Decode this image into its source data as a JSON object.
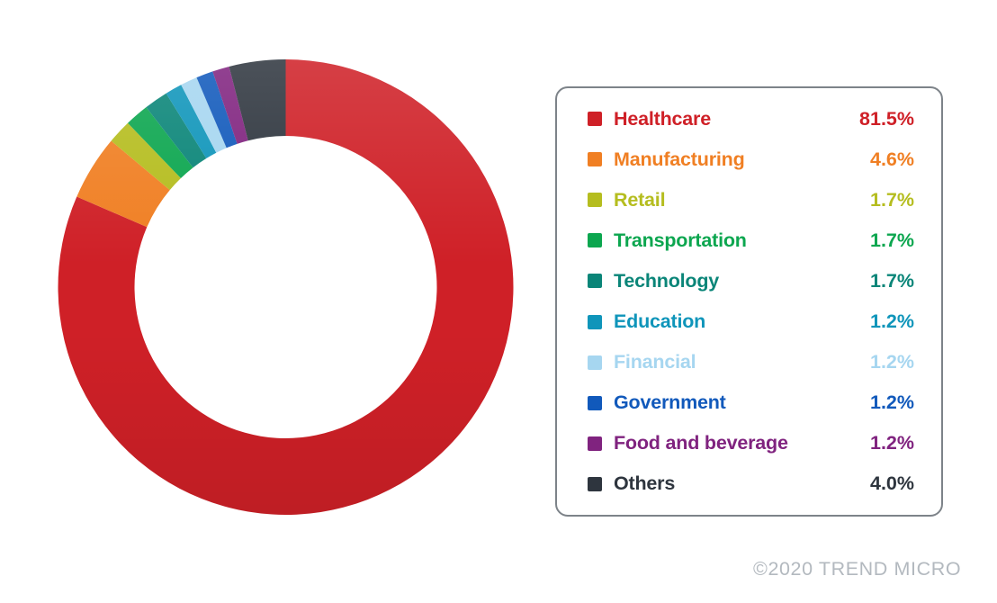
{
  "chart_data": {
    "type": "pie",
    "variant": "donut",
    "start_angle_deg": 0,
    "direction": "clockwise",
    "legend_position": "right",
    "title": "",
    "series": [
      {
        "label": "Healthcare",
        "value": 81.5,
        "display": "81.5%",
        "color": "#cf2027"
      },
      {
        "label": "Manufacturing",
        "value": 4.6,
        "display": "4.6%",
        "color": "#f07f23"
      },
      {
        "label": "Retail",
        "value": 1.7,
        "display": "1.7%",
        "color": "#b5bd1f"
      },
      {
        "label": "Transportation",
        "value": 1.7,
        "display": "1.7%",
        "color": "#0ca64f"
      },
      {
        "label": "Technology",
        "value": 1.7,
        "display": "1.7%",
        "color": "#0a8578"
      },
      {
        "label": "Education",
        "value": 1.2,
        "display": "1.2%",
        "color": "#0f95ba"
      },
      {
        "label": "Financial",
        "value": 1.2,
        "display": "1.2%",
        "color": "#a6d6f0"
      },
      {
        "label": "Government",
        "value": 1.2,
        "display": "1.2%",
        "color": "#1159bb"
      },
      {
        "label": "Food and beverage",
        "value": 1.2,
        "display": "1.2%",
        "color": "#80237f"
      },
      {
        "label": "Others",
        "value": 4.0,
        "display": "4.0%",
        "color": "#2e353e"
      }
    ]
  },
  "footer": {
    "copyright": "©2020 TREND MICRO"
  }
}
